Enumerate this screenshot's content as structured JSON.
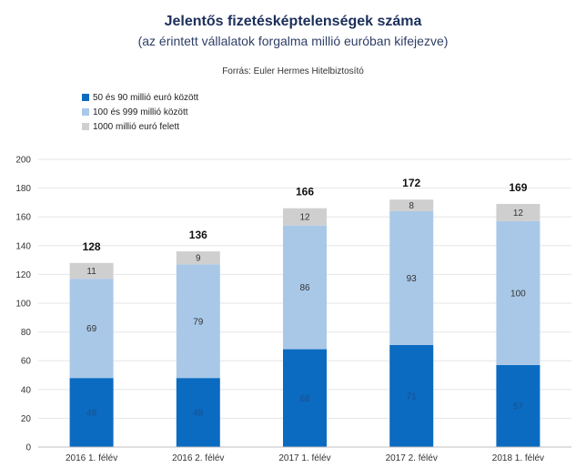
{
  "chart_data": {
    "type": "bar",
    "stacked": true,
    "title": "Jelentős fizetésképtelenségek száma",
    "subtitle": "(az érintett vállalatok forgalma millió euróban kifejezve)",
    "source": "Forrás: Euler Hermes Hitelbiztosító",
    "categories": [
      "2016 1. félév",
      "2016 2. félév",
      "2017 1. félév",
      "2017 2. félév",
      "2018 1. félév"
    ],
    "series": [
      {
        "name": "50 és 90 millió euró között",
        "color": "#0b6bc0",
        "values": [
          48,
          48,
          68,
          71,
          57
        ]
      },
      {
        "name": "100 és 999 millió között",
        "color": "#a9c8e8",
        "values": [
          69,
          79,
          86,
          93,
          100
        ]
      },
      {
        "name": "1000 millió euró felett",
        "color": "#cfcfcf",
        "values": [
          11,
          9,
          12,
          8,
          12
        ]
      }
    ],
    "totals": [
      128,
      136,
      166,
      172,
      169
    ],
    "ylim": [
      0,
      200
    ],
    "yticks": [
      0,
      20,
      40,
      60,
      80,
      100,
      120,
      140,
      160,
      180,
      200
    ],
    "grid": true,
    "legend_position": "top-left",
    "xlabel": "",
    "ylabel": ""
  }
}
